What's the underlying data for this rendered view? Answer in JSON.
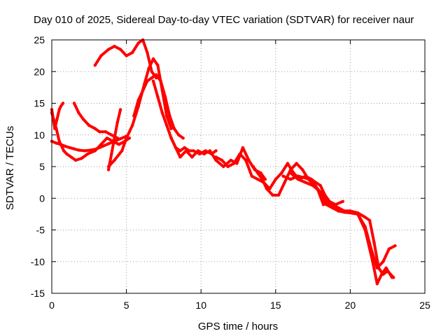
{
  "chart_data": {
    "type": "scatter",
    "title": "Day 010 of 2025, Sidereal Day-to-day VTEC variation (SDTVAR) for receiver naur",
    "xlabel": "GPS time / hours",
    "ylabel": "SDTVAR / TECUs",
    "xlim": [
      0,
      25
    ],
    "ylim": [
      -15,
      25
    ],
    "xticks": [
      0,
      5,
      10,
      15,
      20,
      25
    ],
    "yticks": [
      -15,
      -10,
      -5,
      0,
      5,
      10,
      15,
      20,
      25
    ],
    "grid": true,
    "legend": "none",
    "series_color": "#ff0000",
    "series": [
      {
        "x": [
          0,
          0.1,
          0.2,
          0.35,
          0.5,
          0.6,
          0.75
        ],
        "y": [
          14,
          12.5,
          11,
          12.5,
          14,
          14.5,
          15
        ]
      },
      {
        "x": [
          0,
          0.3,
          0.5,
          0.8,
          1.0,
          1.3,
          1.6,
          2.0,
          2.4,
          2.9,
          3.3,
          3.7,
          4.1,
          4.5,
          4.9,
          5.2
        ],
        "y": [
          13.5,
          11,
          9,
          7.5,
          7,
          6.5,
          6,
          6.3,
          7,
          7.5,
          8.5,
          9.5,
          9,
          8.5,
          9,
          9.5
        ]
      },
      {
        "x": [
          0,
          0.3,
          0.6,
          0.9,
          1.2,
          1.5,
          1.8,
          2.2,
          2.6,
          3.0,
          3.4,
          3.8,
          4.2,
          4.6,
          5.0
        ],
        "y": [
          9,
          8.7,
          8.5,
          8.2,
          8,
          7.8,
          7.6,
          7.5,
          7.6,
          7.8,
          8.2,
          8.6,
          9,
          9.4,
          9.8
        ]
      },
      {
        "x": [
          1.5,
          1.8,
          2.1,
          2.5,
          2.9,
          3.2,
          3.6,
          4.0,
          4.4
        ],
        "y": [
          15,
          13.5,
          12.5,
          11.5,
          11,
          10.5,
          10.5,
          10,
          9.5
        ]
      },
      {
        "x": [
          3.8,
          4.0,
          4.2,
          4.4,
          4.6
        ],
        "y": [
          4.5,
          7,
          9.5,
          12,
          14
        ]
      },
      {
        "x": [
          3.8,
          4.2,
          4.7,
          5.0,
          5.4,
          5.8,
          6.2,
          6.5,
          6.8,
          7.1,
          7.4,
          7.7,
          8.0
        ],
        "y": [
          5,
          6,
          7.5,
          9.5,
          11.5,
          14.5,
          18,
          20.5,
          22,
          21,
          17,
          13,
          11
        ]
      },
      {
        "x": [
          2.9,
          3.3,
          3.8,
          4.2,
          4.6,
          5.0,
          5.4,
          5.8,
          6.1,
          6.4,
          6.7,
          7.0
        ],
        "y": [
          21,
          22.5,
          23.5,
          24,
          23.5,
          22.5,
          23,
          24.5,
          25,
          23,
          20,
          19
        ]
      },
      {
        "x": [
          5.5,
          5.8,
          6.1,
          6.4,
          6.7,
          7.0,
          7.3,
          7.6,
          7.9,
          8.2,
          8.5,
          8.8
        ],
        "y": [
          13,
          15.5,
          17,
          18.5,
          19,
          19.5,
          18.5,
          16,
          13,
          11,
          10,
          9.5
        ]
      },
      {
        "x": [
          6.8,
          7.1,
          7.4,
          7.7,
          8.0,
          8.3,
          8.6,
          8.9,
          9.2,
          9.5,
          9.9,
          10.3,
          10.7,
          11.0
        ],
        "y": [
          18.5,
          16,
          13.5,
          11.5,
          9.5,
          8,
          7.5,
          8,
          7.5,
          7.5,
          7,
          7.5,
          7,
          7.5
        ]
      },
      {
        "x": [
          8.0,
          8.3,
          8.6,
          9.0,
          9.4,
          9.8,
          10.2,
          10.6,
          11.0,
          11.5,
          12.0,
          12.4,
          12.8,
          13.2,
          13.6,
          14.0,
          14.3
        ],
        "y": [
          9.5,
          8,
          6.5,
          7.5,
          6.5,
          7.5,
          7,
          7.5,
          6,
          5,
          6,
          5.5,
          8,
          6,
          4.5,
          4,
          3
        ]
      },
      {
        "x": [
          11.0,
          11.4,
          11.8,
          12.2,
          12.6,
          13.0,
          13.4,
          13.8,
          14.2,
          14.6,
          15.0,
          15.4,
          15.8,
          16.2,
          16.6,
          17.0,
          17.4,
          17.8,
          18.2,
          18.6,
          19.0,
          19.5,
          20.0,
          20.5,
          21.0,
          21.4,
          21.8,
          22.2,
          22.6,
          23.0
        ],
        "y": [
          6.5,
          6,
          5,
          5.5,
          7,
          6,
          3.5,
          3,
          2.5,
          1.5,
          3,
          4,
          5.5,
          4,
          3,
          3.5,
          3,
          1.5,
          -1,
          -0.5,
          -1.5,
          -2,
          -2,
          -2.5,
          -4.5,
          -8,
          -11,
          -10,
          -8,
          -7.5
        ]
      },
      {
        "x": [
          13.5,
          13.8,
          14.1,
          14.4,
          14.8,
          15.2,
          15.6,
          16.0,
          16.4,
          16.8,
          17.2,
          17.6,
          18.0,
          18.4,
          18.8,
          19.2,
          19.6,
          20.0,
          20.5,
          21.0,
          21.5,
          21.8,
          22.1,
          22.4,
          22.8
        ],
        "y": [
          5,
          4,
          3,
          1.5,
          0.5,
          0.5,
          2.5,
          4.5,
          5.5,
          4.5,
          3,
          2,
          1,
          -1,
          -1.5,
          -2,
          -2.2,
          -2.3,
          -2.5,
          -5,
          -10,
          -13.5,
          -12,
          -11,
          -12.5
        ]
      },
      {
        "x": [
          16.0,
          16.5,
          17.0,
          17.5,
          18.0,
          18.4,
          18.8,
          19.2,
          19.6,
          20.0,
          20.5,
          21.0,
          21.3,
          21.6,
          21.9,
          22.2,
          22.5,
          22.9
        ],
        "y": [
          4,
          3,
          2.5,
          2,
          1,
          -0.5,
          -1,
          -1.5,
          -2,
          -2,
          -2.3,
          -3,
          -3.5,
          -7,
          -11,
          -12,
          -11.5,
          -12.5
        ]
      },
      {
        "x": [
          15.5,
          16.0,
          16.5,
          17.0,
          17.5,
          18.0,
          18.3,
          18.6,
          19.0,
          19.5
        ],
        "y": [
          3.5,
          3,
          3.5,
          3.2,
          2.8,
          2,
          0.5,
          -0.5,
          -1,
          -0.5
        ]
      }
    ]
  }
}
